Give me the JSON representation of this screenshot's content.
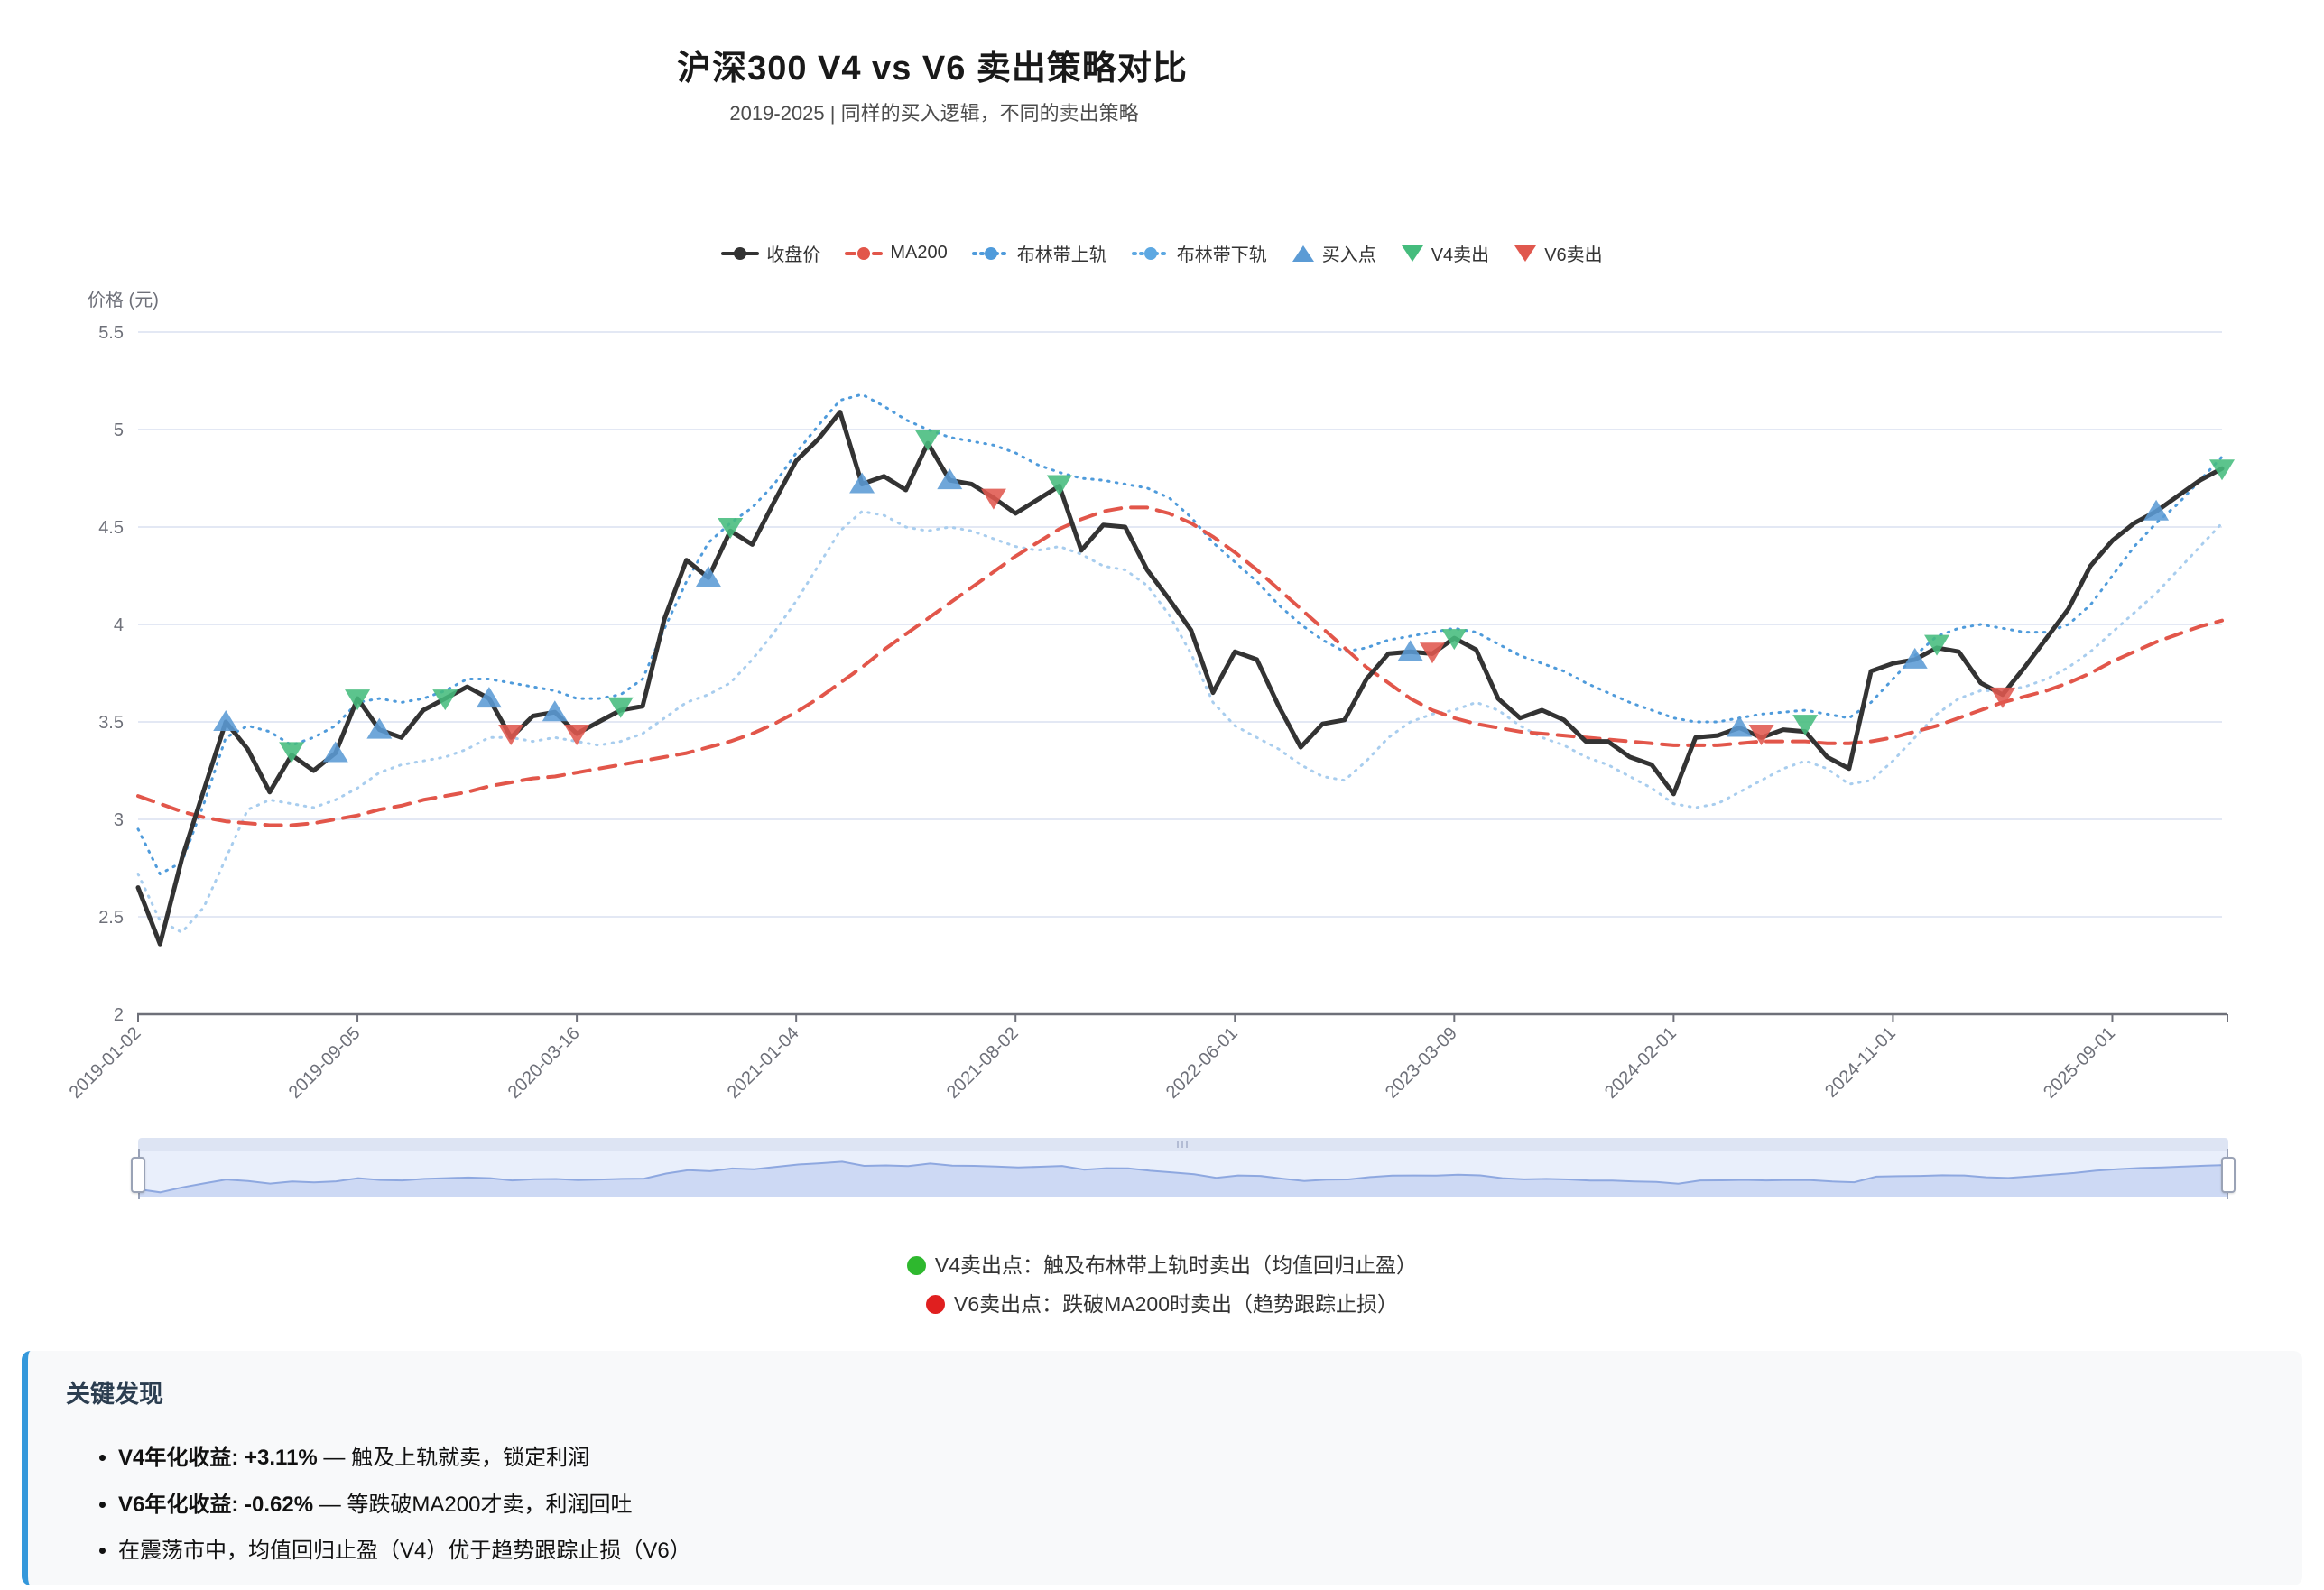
{
  "title": "沪深300 V4 vs V6 卖出策略对比",
  "subtitle": "2019-2025 | 同样的买入逻辑，不同的卖出策略",
  "legend": [
    {
      "label": "收盘价",
      "icon": "line-solid",
      "color": "#333333"
    },
    {
      "label": "MA200",
      "icon": "line-dashed",
      "color": "#e2564a"
    },
    {
      "label": "布林带上轨",
      "icon": "line-dotted",
      "color": "#4f9bdb"
    },
    {
      "label": "布林带下轨",
      "icon": "line-dotted",
      "color": "#5da8e2"
    },
    {
      "label": "买入点",
      "icon": "triangle-up",
      "color": "#5b9bd5"
    },
    {
      "label": "V4卖出",
      "icon": "triangle-down",
      "color": "#45bc7d"
    },
    {
      "label": "V6卖出",
      "icon": "triangle-down",
      "color": "#e0584e"
    }
  ],
  "chart_data": {
    "type": "line",
    "title": "沪深300 V4 vs V6 卖出策略对比",
    "xlabel": "",
    "ylabel": "价格 (元)",
    "ylim": [
      2,
      5.5
    ],
    "y_ticks": [
      2,
      2.5,
      3,
      3.5,
      4,
      4.5,
      5,
      5.5
    ],
    "grid": true,
    "legend_position": "top",
    "n_points": 96,
    "x_tick_labels": [
      {
        "index": 0,
        "label": "2019-01-02"
      },
      {
        "index": 10,
        "label": "2019-09-05"
      },
      {
        "index": 20,
        "label": "2020-03-16"
      },
      {
        "index": 30,
        "label": "2021-01-04"
      },
      {
        "index": 40,
        "label": "2021-08-02"
      },
      {
        "index": 50,
        "label": "2022-06-01"
      },
      {
        "index": 60,
        "label": "2023-03-09"
      },
      {
        "index": 70,
        "label": "2024-02-01"
      },
      {
        "index": 80,
        "label": "2024-11-01"
      },
      {
        "index": 90,
        "label": "2025-09-01"
      }
    ],
    "series": [
      {
        "name": "收盘价",
        "style": "solid",
        "color": "#333333",
        "width": 5,
        "values": [
          2.65,
          2.36,
          2.8,
          3.15,
          3.5,
          3.36,
          3.14,
          3.33,
          3.25,
          3.34,
          3.62,
          3.46,
          3.42,
          3.56,
          3.62,
          3.68,
          3.62,
          3.42,
          3.53,
          3.55,
          3.44,
          3.5,
          3.56,
          3.58,
          4.03,
          4.33,
          4.24,
          4.48,
          4.41,
          4.63,
          4.84,
          4.95,
          5.09,
          4.72,
          4.76,
          4.69,
          4.93,
          4.74,
          4.72,
          4.65,
          4.57,
          4.64,
          4.71,
          4.38,
          4.51,
          4.5,
          4.28,
          4.13,
          3.97,
          3.65,
          3.86,
          3.82,
          3.58,
          3.37,
          3.49,
          3.51,
          3.72,
          3.85,
          3.86,
          3.85,
          3.93,
          3.87,
          3.62,
          3.52,
          3.56,
          3.51,
          3.4,
          3.4,
          3.32,
          3.28,
          3.13,
          3.42,
          3.43,
          3.47,
          3.42,
          3.46,
          3.45,
          3.32,
          3.26,
          3.76,
          3.8,
          3.82,
          3.88,
          3.86,
          3.7,
          3.64,
          3.78,
          3.93,
          4.08,
          4.3,
          4.43,
          4.52,
          4.58,
          4.66,
          4.74,
          4.8
        ]
      },
      {
        "name": "MA200",
        "style": "dashed",
        "color": "#e2564a",
        "width": 4,
        "values": [
          3.12,
          3.08,
          3.04,
          3.01,
          2.99,
          2.98,
          2.97,
          2.97,
          2.98,
          3.0,
          3.02,
          3.05,
          3.07,
          3.1,
          3.12,
          3.14,
          3.17,
          3.19,
          3.21,
          3.22,
          3.24,
          3.26,
          3.28,
          3.3,
          3.32,
          3.34,
          3.37,
          3.4,
          3.44,
          3.49,
          3.55,
          3.62,
          3.7,
          3.78,
          3.87,
          3.95,
          4.03,
          4.11,
          4.19,
          4.27,
          4.35,
          4.42,
          4.49,
          4.54,
          4.58,
          4.6,
          4.6,
          4.57,
          4.52,
          4.45,
          4.37,
          4.28,
          4.18,
          4.08,
          3.98,
          3.88,
          3.78,
          3.7,
          3.62,
          3.56,
          3.52,
          3.49,
          3.47,
          3.45,
          3.44,
          3.43,
          3.42,
          3.41,
          3.4,
          3.39,
          3.38,
          3.38,
          3.38,
          3.39,
          3.4,
          3.4,
          3.4,
          3.39,
          3.39,
          3.4,
          3.42,
          3.45,
          3.48,
          3.52,
          3.56,
          3.6,
          3.63,
          3.66,
          3.7,
          3.75,
          3.81,
          3.86,
          3.91,
          3.95,
          3.99,
          4.02
        ]
      },
      {
        "name": "布林带上轨",
        "style": "dotted",
        "color": "#4f9bdb",
        "width": 3,
        "values": [
          2.95,
          2.72,
          2.78,
          3.08,
          3.42,
          3.48,
          3.45,
          3.38,
          3.42,
          3.48,
          3.6,
          3.62,
          3.6,
          3.62,
          3.66,
          3.72,
          3.72,
          3.7,
          3.68,
          3.66,
          3.62,
          3.62,
          3.64,
          3.72,
          3.98,
          4.22,
          4.42,
          4.52,
          4.6,
          4.72,
          4.88,
          5.02,
          5.15,
          5.18,
          5.12,
          5.05,
          5.0,
          4.96,
          4.94,
          4.92,
          4.88,
          4.82,
          4.78,
          4.75,
          4.74,
          4.72,
          4.7,
          4.65,
          4.55,
          4.42,
          4.32,
          4.22,
          4.1,
          4.0,
          3.92,
          3.86,
          3.88,
          3.92,
          3.94,
          3.96,
          3.98,
          3.96,
          3.9,
          3.84,
          3.8,
          3.76,
          3.7,
          3.65,
          3.6,
          3.56,
          3.52,
          3.5,
          3.5,
          3.52,
          3.54,
          3.55,
          3.56,
          3.54,
          3.52,
          3.6,
          3.72,
          3.84,
          3.94,
          3.98,
          4.0,
          3.98,
          3.96,
          3.96,
          4.0,
          4.1,
          4.25,
          4.4,
          4.52,
          4.62,
          4.74,
          4.86
        ]
      },
      {
        "name": "布林带下轨",
        "style": "dotted",
        "color": "#a8cdee",
        "width": 3,
        "values": [
          2.72,
          2.48,
          2.42,
          2.55,
          2.8,
          3.05,
          3.1,
          3.08,
          3.06,
          3.1,
          3.16,
          3.24,
          3.28,
          3.3,
          3.32,
          3.36,
          3.42,
          3.42,
          3.4,
          3.42,
          3.4,
          3.38,
          3.4,
          3.44,
          3.52,
          3.6,
          3.64,
          3.7,
          3.82,
          3.96,
          4.12,
          4.3,
          4.48,
          4.58,
          4.56,
          4.5,
          4.48,
          4.5,
          4.48,
          4.44,
          4.4,
          4.38,
          4.4,
          4.36,
          4.3,
          4.28,
          4.2,
          4.05,
          3.85,
          3.6,
          3.48,
          3.42,
          3.36,
          3.28,
          3.22,
          3.2,
          3.3,
          3.42,
          3.5,
          3.54,
          3.56,
          3.6,
          3.56,
          3.48,
          3.42,
          3.38,
          3.32,
          3.28,
          3.22,
          3.16,
          3.08,
          3.06,
          3.08,
          3.14,
          3.2,
          3.26,
          3.3,
          3.26,
          3.18,
          3.2,
          3.3,
          3.42,
          3.54,
          3.62,
          3.66,
          3.66,
          3.68,
          3.72,
          3.78,
          3.86,
          3.96,
          4.06,
          4.16,
          4.28,
          4.4,
          4.52
        ]
      }
    ],
    "markers": [
      {
        "name": "买入点",
        "symbol": "triangle-up",
        "color": "#5b9bd5",
        "points": [
          [
            4,
            3.5
          ],
          [
            9,
            3.34
          ],
          [
            11,
            3.46
          ],
          [
            16,
            3.62
          ],
          [
            19,
            3.55
          ],
          [
            26,
            4.24
          ],
          [
            33,
            4.72
          ],
          [
            37,
            4.74
          ],
          [
            58,
            3.86
          ],
          [
            73,
            3.47
          ],
          [
            81,
            3.82
          ],
          [
            92,
            4.58
          ]
        ]
      },
      {
        "name": "V4卖出",
        "symbol": "triangle-down",
        "color": "#45bc7d",
        "points": [
          [
            7,
            3.35
          ],
          [
            10,
            3.62
          ],
          [
            14,
            3.62
          ],
          [
            22,
            3.58
          ],
          [
            27,
            4.5
          ],
          [
            36,
            4.95
          ],
          [
            42,
            4.72
          ],
          [
            60,
            3.93
          ],
          [
            76,
            3.49
          ],
          [
            82,
            3.9
          ],
          [
            95,
            4.8
          ]
        ]
      },
      {
        "name": "V6卖出",
        "symbol": "triangle-down",
        "color": "#e0584e",
        "points": [
          [
            17,
            3.44
          ],
          [
            20,
            3.44
          ],
          [
            39,
            4.65
          ],
          [
            59,
            3.86
          ],
          [
            74,
            3.44
          ],
          [
            85,
            3.63
          ]
        ]
      }
    ]
  },
  "notes": [
    {
      "dot_color": "#2eb82e",
      "text": "V4卖出点：触及布林带上轨时卖出（均值回归止盈）"
    },
    {
      "dot_color": "#e01f1f",
      "text": "V6卖出点：跌破MA200时卖出（趋势跟踪止损）"
    }
  ],
  "findings": {
    "title": "关键发现",
    "accent_color": "#3498db",
    "items": [
      {
        "bold": "V4年化收益: +3.11%",
        "rest": " — 触及上轨就卖，锁定利润"
      },
      {
        "bold": "V6年化收益: -0.62%",
        "rest": " — 等跌破MA200才卖，利润回吐"
      },
      {
        "bold": "",
        "rest": "在震荡市中，均值回归止盈（V4）优于趋势跟踪止损（V6）"
      }
    ]
  }
}
